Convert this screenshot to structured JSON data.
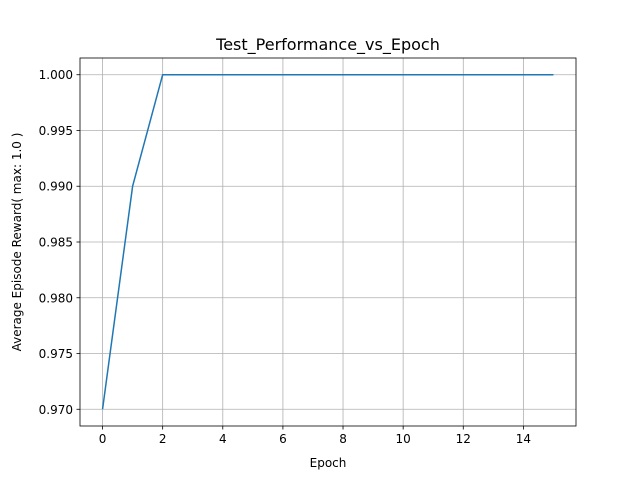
{
  "chart_data": {
    "type": "line",
    "title": "Test_Performance_vs_Epoch",
    "xlabel": "Epoch",
    "ylabel": "Average Episode Reward( max: 1.0 )",
    "xlim": [
      -0.75,
      15.75
    ],
    "ylim": [
      0.9685,
      1.0015
    ],
    "x_ticks": [
      0,
      2,
      4,
      6,
      8,
      10,
      12,
      14
    ],
    "y_ticks": [
      0.97,
      0.975,
      0.98,
      0.985,
      0.99,
      0.995,
      1.0
    ],
    "y_tick_labels": [
      "0.970",
      "0.975",
      "0.980",
      "0.985",
      "0.990",
      "0.995",
      "1.000"
    ],
    "grid": true,
    "series": [
      {
        "color": "#1f77b4",
        "x": [
          0,
          1,
          2,
          3,
          4,
          5,
          6,
          7,
          8,
          9,
          10,
          11,
          12,
          13,
          14,
          15
        ],
        "values": [
          0.97,
          0.99,
          1.0,
          1.0,
          1.0,
          1.0,
          1.0,
          1.0,
          1.0,
          1.0,
          1.0,
          1.0,
          1.0,
          1.0,
          1.0,
          1.0
        ]
      }
    ]
  }
}
